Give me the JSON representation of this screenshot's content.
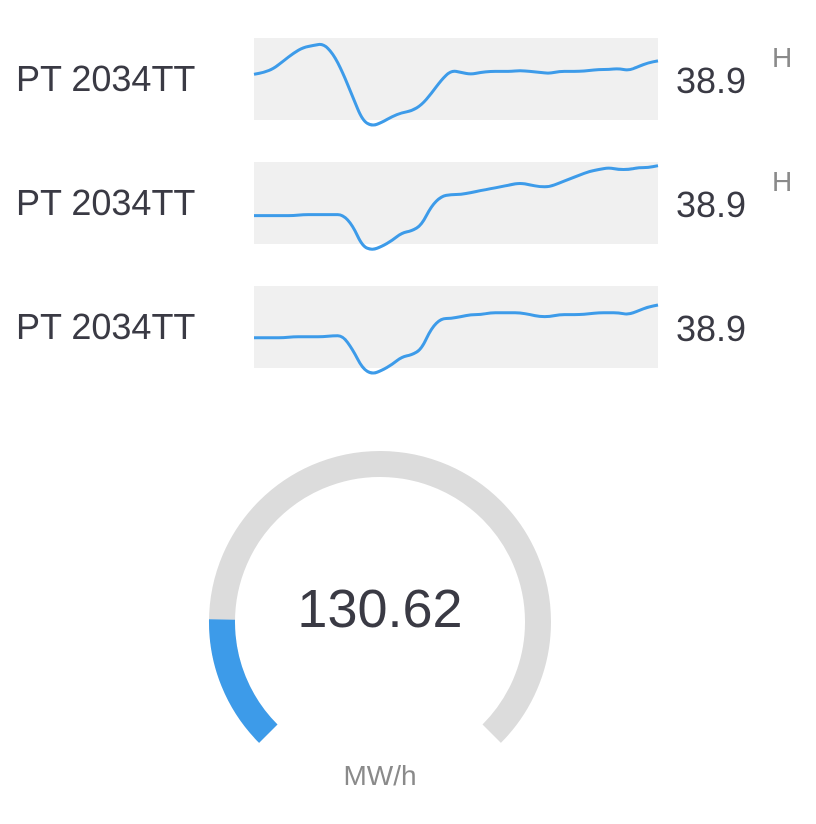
{
  "trends": [
    {
      "label": "PT 2034TT",
      "value": "38.9",
      "flag": "H",
      "line_color": "#3d9be9",
      "background_color": "#f0f0f0",
      "series": [
        58,
        60,
        64,
        72,
        80,
        86,
        88,
        90,
        80,
        60,
        35,
        10,
        4,
        8,
        14,
        18,
        20,
        26,
        38,
        52,
        62,
        60,
        58,
        60,
        61,
        61,
        61,
        62,
        61,
        60,
        59,
        61,
        61,
        61,
        62,
        63,
        63,
        64,
        62,
        66,
        70,
        72
      ]
    },
    {
      "label": "PT 2034TT",
      "value": "38.9",
      "flag": "H",
      "line_color": "#3d9be9",
      "background_color": "#f0f0f0",
      "series": [
        40,
        40,
        40,
        40,
        40,
        41,
        41,
        41,
        41,
        41,
        30,
        8,
        4,
        8,
        14,
        22,
        24,
        30,
        50,
        60,
        62,
        62,
        64,
        66,
        68,
        70,
        72,
        74,
        72,
        70,
        70,
        74,
        78,
        82,
        86,
        88,
        90,
        88,
        88,
        90,
        90,
        92
      ]
    },
    {
      "label": "PT 2034TT",
      "value": "38.9",
      "flag": "",
      "line_color": "#3d9be9",
      "background_color": "#f0f0f0",
      "series": [
        42,
        42,
        42,
        42,
        43,
        43,
        43,
        43,
        44,
        44,
        30,
        10,
        4,
        8,
        14,
        22,
        24,
        30,
        52,
        62,
        62,
        64,
        66,
        66,
        68,
        68,
        68,
        68,
        66,
        64,
        64,
        66,
        66,
        66,
        67,
        68,
        68,
        68,
        66,
        70,
        74,
        76
      ]
    }
  ],
  "gauge": {
    "value": "130.62",
    "unit": "MW/h",
    "fraction": 0.17,
    "fill_color": "#3d9be9",
    "track_color": "#dcdcdc"
  }
}
